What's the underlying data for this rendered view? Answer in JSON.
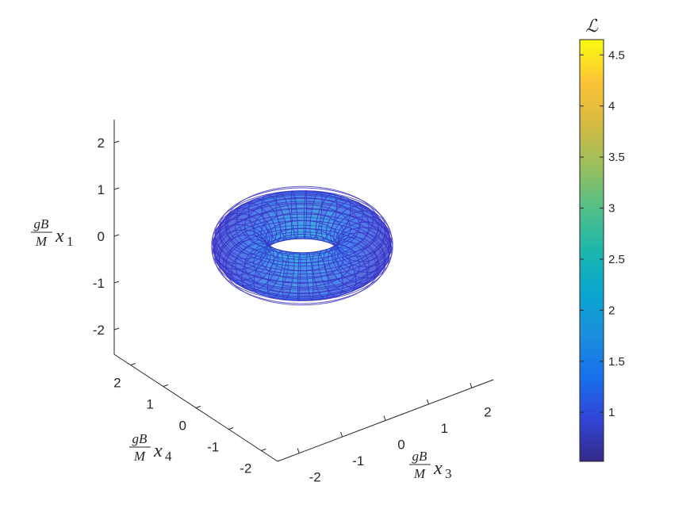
{
  "chart_data": {
    "type": "surface",
    "description_shape": "torus-like wireframe surface",
    "axes": {
      "x3": {
        "label": {
          "frac_num": "gB",
          "frac_den": "M",
          "var": "x",
          "sub": "3"
        },
        "range": [
          -2.5,
          2.5
        ],
        "ticks": [
          "-2",
          "-1",
          "0",
          "1",
          "2"
        ]
      },
      "x4": {
        "label": {
          "frac_num": "gB",
          "frac_den": "M",
          "var": "x",
          "sub": "4"
        },
        "range": [
          -2.5,
          2.5
        ],
        "ticks": [
          "2",
          "1",
          "0",
          "-1",
          "-2"
        ]
      },
      "x1": {
        "label": {
          "frac_num": "gB",
          "frac_den": "M",
          "var": "x",
          "sub": "1"
        },
        "range": [
          -2.5,
          2.5
        ],
        "ticks": [
          "2",
          "1",
          "0",
          "-1",
          "-2"
        ]
      }
    },
    "colorbar": {
      "title": "ℒ",
      "range": [
        0.52,
        4.65
      ],
      "ticks": [
        "4.5",
        "4",
        "3.5",
        "3",
        "2.5",
        "2",
        "1.5",
        "1"
      ],
      "tick_values": [
        4.5,
        4,
        3.5,
        3,
        2.5,
        2,
        1.5,
        1
      ],
      "colormap": "parula"
    },
    "surface": {
      "major_radius": 1.15,
      "minor_radius": 0.5,
      "color_range_on_surface": [
        0.52,
        2.0
      ]
    },
    "grid": false
  }
}
